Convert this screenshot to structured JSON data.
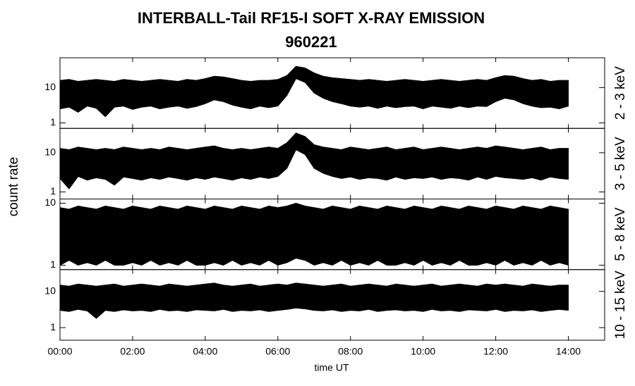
{
  "chart_data": {
    "type": "band",
    "title": "INTERBALL-Tail RF15-I SOFT X-RAY EMISSION",
    "subtitle": "960221",
    "ylabel": "count rate",
    "xlabel": "time UT",
    "color": "#000000",
    "log_y": true,
    "xlim": [
      0,
      15
    ],
    "xticks": [
      {
        "value": 0,
        "label": "00:00"
      },
      {
        "value": 2,
        "label": "02:00"
      },
      {
        "value": 4,
        "label": "04:00"
      },
      {
        "value": 6,
        "label": "06:00"
      },
      {
        "value": 8,
        "label": "08:00"
      },
      {
        "value": 10,
        "label": "10:00"
      },
      {
        "value": 12,
        "label": "12:00"
      },
      {
        "value": 14,
        "label": "14:00"
      }
    ],
    "x": [
      0,
      0.25,
      0.5,
      0.75,
      1,
      1.25,
      1.5,
      1.75,
      2,
      2.25,
      2.5,
      2.75,
      3,
      3.25,
      3.5,
      3.75,
      4,
      4.25,
      4.5,
      4.75,
      5,
      5.25,
      5.5,
      5.75,
      6,
      6.25,
      6.5,
      6.75,
      7,
      7.25,
      7.5,
      7.75,
      8,
      8.25,
      8.5,
      8.75,
      9,
      9.25,
      9.5,
      9.75,
      10,
      10.25,
      10.5,
      10.75,
      11,
      11.25,
      11.5,
      11.75,
      12,
      12.25,
      12.5,
      12.75,
      13,
      13.25,
      13.5,
      13.75,
      14
    ],
    "panels": [
      {
        "name": "2 - 3 keV",
        "ylim": [
          0.7,
          70
        ],
        "yticks": [
          1,
          10
        ],
        "high": [
          16,
          17,
          15,
          16,
          17,
          16,
          15,
          17,
          16,
          15,
          16,
          17,
          16,
          15,
          17,
          16,
          18,
          21,
          20,
          18,
          16,
          15,
          16,
          16,
          17,
          22,
          40,
          36,
          26,
          21,
          19,
          18,
          17,
          16,
          17,
          16,
          15,
          16,
          17,
          16,
          15,
          16,
          17,
          16,
          15,
          16,
          17,
          16,
          19,
          22,
          21,
          18,
          16,
          17,
          15,
          16,
          16
        ],
        "low": [
          2.5,
          2.8,
          2,
          3,
          2.6,
          1.5,
          2.8,
          3,
          2.4,
          2.8,
          3,
          2.5,
          2.8,
          3,
          2.6,
          2.9,
          3.5,
          4.5,
          4,
          3.2,
          2.8,
          2.5,
          3,
          2.7,
          3,
          6,
          18,
          14,
          7,
          5,
          4,
          3.5,
          3,
          2.8,
          3,
          2.6,
          3,
          2.7,
          2.9,
          3,
          2.5,
          3,
          2.8,
          2.6,
          3,
          2.7,
          3,
          2.9,
          4,
          5,
          4.5,
          3.5,
          3,
          2.7,
          2.8,
          2.5,
          3
        ]
      },
      {
        "name": "3 - 5 keV",
        "ylim": [
          0.66,
          42
        ],
        "yticks": [
          1,
          10
        ],
        "high": [
          13,
          12,
          14,
          13,
          12,
          13,
          12,
          14,
          13,
          12,
          13,
          12,
          14,
          13,
          12,
          13,
          14,
          15,
          13,
          12,
          13,
          12,
          13,
          14,
          13,
          18,
          32,
          26,
          16,
          14,
          13,
          12,
          14,
          13,
          12,
          13,
          14,
          12,
          13,
          14,
          12,
          13,
          14,
          13,
          12,
          13,
          14,
          13,
          15,
          14,
          13,
          12,
          13,
          14,
          12,
          13,
          13
        ],
        "low": [
          2.2,
          1.2,
          2.5,
          2,
          2.3,
          2.1,
          1.5,
          2.4,
          2.2,
          2,
          2.3,
          2.1,
          2.4,
          2.2,
          2,
          2.3,
          2.1,
          2.4,
          2.2,
          2,
          2.3,
          2.1,
          2.4,
          2.2,
          2.5,
          4,
          12,
          9,
          4,
          3,
          2.5,
          2.2,
          2.4,
          2.1,
          2.3,
          2.2,
          2,
          2.4,
          2.1,
          2.3,
          2.2,
          2.4,
          2.1,
          2.3,
          2.2,
          2,
          2.4,
          2.1,
          2.5,
          2.3,
          2.2,
          2.1,
          2.3,
          2,
          2.4,
          2.2,
          2.1
        ]
      },
      {
        "name": "5 - 8 keV",
        "ylim": [
          0.85,
          11.7
        ],
        "yticks": [
          1,
          10
        ],
        "high": [
          8.5,
          8,
          9,
          8.5,
          8,
          9,
          8.5,
          8,
          9,
          8.5,
          8,
          9,
          8.5,
          8,
          9,
          8.5,
          8,
          9,
          8.5,
          8,
          9,
          8.5,
          8,
          9,
          8.5,
          9,
          10,
          9,
          8.5,
          8,
          9,
          8.5,
          8,
          9,
          8.5,
          8,
          9,
          8.5,
          8,
          9,
          8.5,
          8,
          9,
          8.5,
          8,
          9,
          8.5,
          8,
          9,
          8.5,
          8,
          9,
          8.5,
          8,
          9,
          8.5,
          8
        ],
        "low": [
          1,
          1.2,
          1,
          1.1,
          1,
          1.2,
          1,
          1,
          1.1,
          1,
          1.2,
          1,
          1.1,
          1,
          1.2,
          1,
          1,
          1.1,
          1,
          1.2,
          1,
          1.1,
          1,
          1.2,
          1,
          1.1,
          1.3,
          1.2,
          1,
          1.1,
          1,
          1.2,
          1,
          1.1,
          1,
          1.2,
          1,
          1,
          1.1,
          1,
          1.2,
          1,
          1.1,
          1,
          1.2,
          1,
          1,
          1.1,
          1,
          1.2,
          1,
          1.1,
          1,
          1.2,
          1,
          1.1,
          1
        ]
      },
      {
        "name": "10 - 15 keV",
        "ylim": [
          0.45,
          40
        ],
        "yticks": [
          1,
          10
        ],
        "high": [
          15,
          14,
          16,
          15,
          14,
          15,
          16,
          14,
          15,
          16,
          15,
          14,
          16,
          15,
          14,
          15,
          16,
          17,
          15,
          14,
          15,
          16,
          14,
          15,
          16,
          15,
          17,
          16,
          15,
          14,
          15,
          16,
          14,
          15,
          16,
          15,
          14,
          16,
          15,
          14,
          15,
          16,
          14,
          15,
          16,
          15,
          14,
          16,
          15,
          16,
          15,
          14,
          16,
          15,
          14,
          15,
          15
        ],
        "low": [
          3,
          2.8,
          3.2,
          2.9,
          1.8,
          3,
          2.8,
          3.1,
          2.9,
          3,
          2.8,
          3.2,
          2.9,
          3,
          2.8,
          3.1,
          3,
          2.9,
          3.2,
          2.8,
          3,
          2.9,
          3.1,
          2.8,
          3,
          3.2,
          3.5,
          3.3,
          3,
          2.9,
          3.1,
          2.8,
          3,
          2.9,
          3.2,
          2.8,
          3,
          3.1,
          2.9,
          3,
          2.8,
          3.2,
          2.9,
          3,
          2.8,
          3.1,
          3,
          2.9,
          3.2,
          2.8,
          3,
          2.9,
          3.1,
          2.8,
          3,
          3.2,
          3
        ]
      }
    ]
  }
}
